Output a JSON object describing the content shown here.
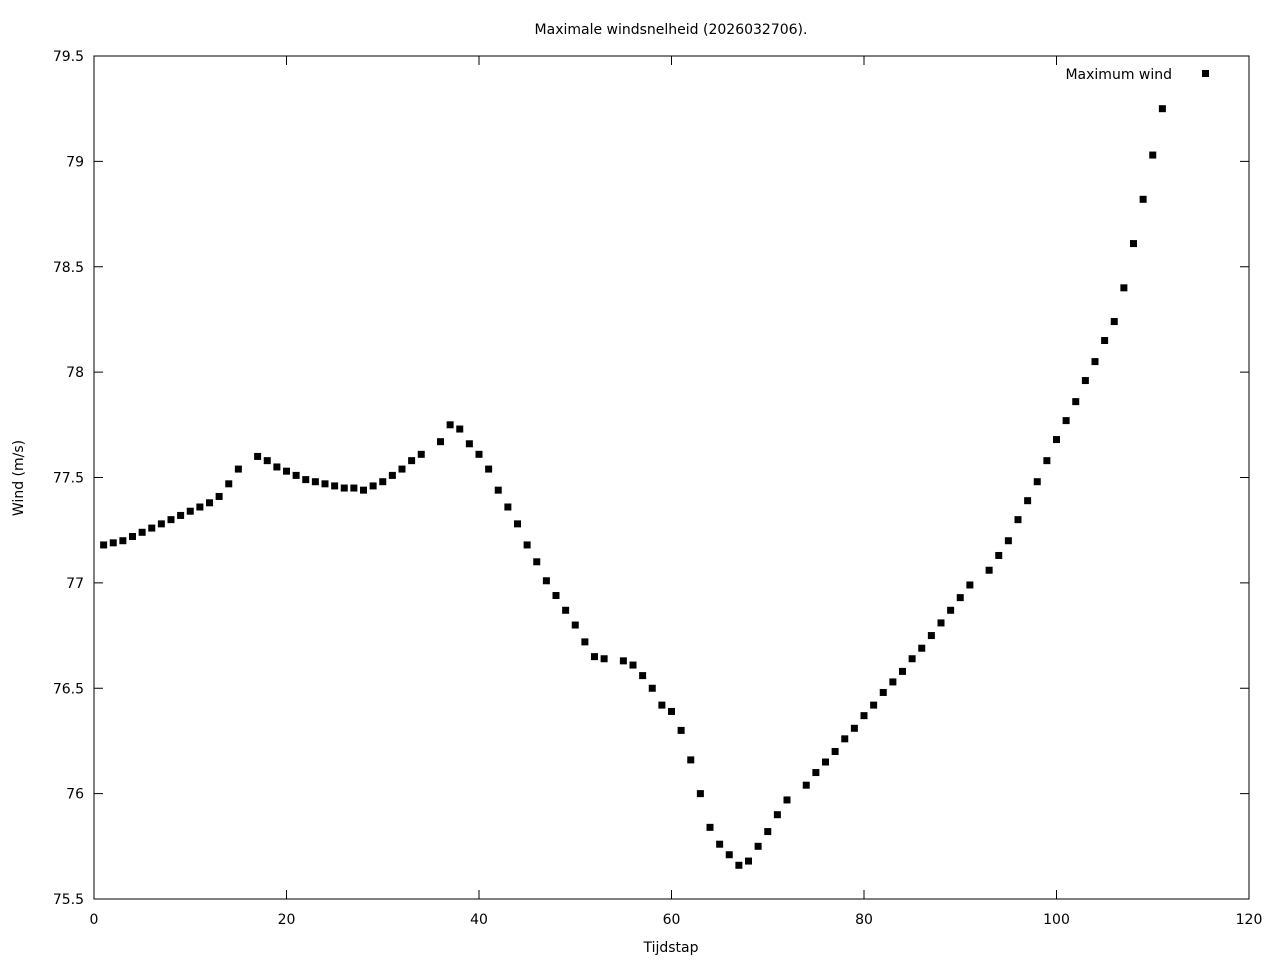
{
  "chart_data": {
    "type": "scatter",
    "title": "Maximale windsnelheid (2026032706).",
    "xlabel": "Tijdstap",
    "ylabel": "Wind (m/s)",
    "xlim": [
      0,
      120
    ],
    "ylim": [
      75.5,
      79.5
    ],
    "xticks": [
      0,
      20,
      40,
      60,
      80,
      100,
      120
    ],
    "yticks": [
      75.5,
      76,
      76.5,
      77,
      77.5,
      78,
      78.5,
      79,
      79.5
    ],
    "grid": false,
    "legend_position": "top-right",
    "series": [
      {
        "name": "Maximum wind",
        "marker": "square",
        "color": "#000000",
        "x": [
          1,
          2,
          3,
          4,
          5,
          6,
          7,
          8,
          9,
          10,
          11,
          12,
          13,
          14,
          15,
          17,
          18,
          19,
          20,
          21,
          22,
          23,
          24,
          25,
          26,
          27,
          28,
          29,
          30,
          31,
          32,
          33,
          34,
          36,
          37,
          38,
          39,
          40,
          41,
          42,
          43,
          44,
          45,
          46,
          47,
          48,
          49,
          50,
          51,
          52,
          53,
          55,
          56,
          57,
          58,
          59,
          60,
          61,
          62,
          63,
          64,
          65,
          66,
          67,
          68,
          69,
          70,
          71,
          72,
          74,
          75,
          76,
          77,
          78,
          79,
          80,
          81,
          82,
          83,
          84,
          85,
          86,
          87,
          88,
          89,
          90,
          91,
          93,
          94,
          95,
          96,
          97,
          98,
          99,
          100,
          101,
          102,
          103,
          104,
          105,
          106,
          107,
          108,
          109,
          110,
          111
        ],
        "y": [
          77.18,
          77.19,
          77.2,
          77.22,
          77.24,
          77.26,
          77.28,
          77.3,
          77.32,
          77.34,
          77.36,
          77.38,
          77.41,
          77.47,
          77.54,
          77.6,
          77.58,
          77.55,
          77.53,
          77.51,
          77.49,
          77.48,
          77.47,
          77.46,
          77.45,
          77.45,
          77.44,
          77.46,
          77.48,
          77.51,
          77.54,
          77.58,
          77.61,
          77.67,
          77.75,
          77.73,
          77.66,
          77.61,
          77.54,
          77.44,
          77.36,
          77.28,
          77.18,
          77.1,
          77.01,
          76.94,
          76.87,
          76.8,
          76.72,
          76.65,
          76.64,
          76.63,
          76.61,
          76.56,
          76.5,
          76.42,
          76.39,
          76.3,
          76.16,
          76.0,
          75.84,
          75.76,
          75.71,
          75.66,
          75.68,
          75.75,
          75.82,
          75.9,
          75.97,
          76.04,
          76.1,
          76.15,
          76.2,
          76.26,
          76.31,
          76.37,
          76.42,
          76.48,
          76.53,
          76.58,
          76.64,
          76.69,
          76.75,
          76.81,
          76.87,
          76.93,
          76.99,
          77.06,
          77.13,
          77.2,
          77.3,
          77.39,
          77.48,
          77.58,
          77.68,
          77.77,
          77.86,
          77.96,
          78.05,
          78.15,
          78.24,
          78.4,
          78.61,
          78.82,
          79.03,
          79.25
        ]
      }
    ]
  }
}
